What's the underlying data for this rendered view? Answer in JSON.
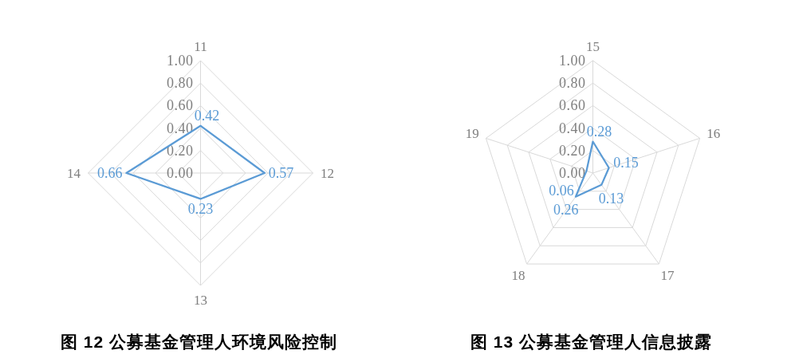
{
  "chart_data": [
    {
      "type": "radar",
      "title": "图 12 公募基金管理人环境风险控制",
      "categories": [
        "11",
        "12",
        "13",
        "14"
      ],
      "series": [
        {
          "color": "#5b9bd5",
          "values": [
            0.42,
            0.57,
            0.23,
            0.66
          ]
        }
      ],
      "ylim": [
        0,
        1
      ],
      "yticks": [
        {
          "value": 0,
          "label": "0.00"
        },
        {
          "value": 0.2,
          "label": "0.20"
        },
        {
          "value": 0.4,
          "label": "0.40"
        },
        {
          "value": 0.6,
          "label": "0.60"
        },
        {
          "value": 0.8,
          "label": "0.80"
        },
        {
          "value": 1,
          "label": "1.00"
        }
      ],
      "grid": true,
      "data_labels": true
    },
    {
      "type": "radar",
      "title": "图 13 公募基金管理人信息披露",
      "categories": [
        "15",
        "16",
        "17",
        "18",
        "19"
      ],
      "series": [
        {
          "color": "#5b9bd5",
          "values": [
            0.28,
            0.15,
            0.13,
            0.26,
            0.06
          ]
        }
      ],
      "ylim": [
        0,
        1
      ],
      "yticks": [
        {
          "value": 0,
          "label": "0.00"
        },
        {
          "value": 0.2,
          "label": "0.20"
        },
        {
          "value": 0.4,
          "label": "0.40"
        },
        {
          "value": 0.6,
          "label": "0.60"
        },
        {
          "value": 0.8,
          "label": "0.80"
        },
        {
          "value": 1,
          "label": "1.00"
        }
      ],
      "grid": true,
      "data_labels": true
    }
  ]
}
